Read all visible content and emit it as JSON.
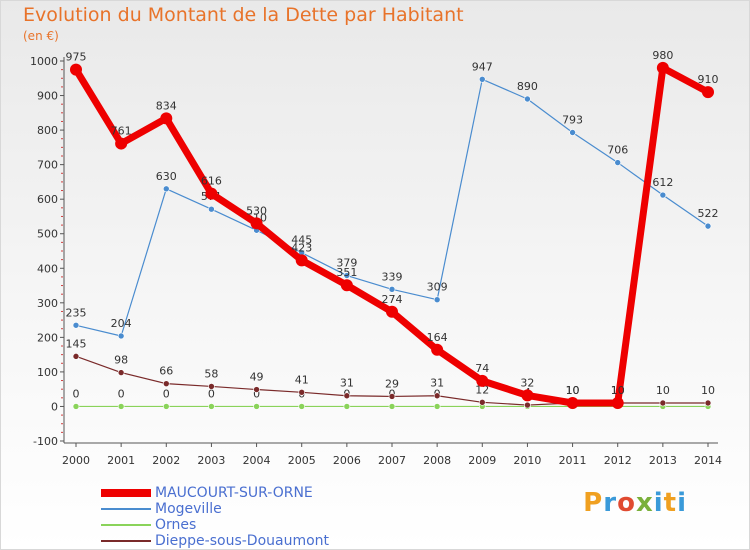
{
  "header": {
    "title": "Evolution du Montant de la Dette par Habitant",
    "unit": "(en €)"
  },
  "brand": {
    "logo_text": "Proxiti"
  },
  "chart_data": {
    "type": "line",
    "title": "Evolution du Montant de la Dette par Habitant",
    "subtitle": "(en €)",
    "xlabel": "",
    "ylabel": "",
    "x": [
      "2000",
      "2001",
      "2002",
      "2003",
      "2004",
      "2005",
      "2006",
      "2007",
      "2008",
      "2009",
      "2010",
      "2011",
      "2012",
      "2013",
      "2014"
    ],
    "ylim": [
      -100,
      1000
    ],
    "yticks": [
      "-100",
      "0",
      "100",
      "200",
      "300",
      "400",
      "500",
      "600",
      "700",
      "800",
      "900",
      "1000"
    ],
    "grid": false,
    "legend_position": "bottom-left",
    "series": [
      {
        "name": "Mogeville",
        "color": "#4a8ccf",
        "values": [
          235,
          204,
          630,
          571,
          510,
          445,
          379,
          339,
          309,
          947,
          890,
          793,
          706,
          612,
          522
        ],
        "labels": [
          "235",
          "204",
          "630",
          "571",
          "510",
          "445",
          "379",
          "339",
          "309",
          "947",
          "890",
          "793",
          "706",
          "612",
          "522"
        ]
      },
      {
        "name": "Ornes",
        "color": "#8ad35a",
        "values": [
          0,
          0,
          0,
          0,
          0,
          0,
          0,
          0,
          0,
          0,
          0,
          0,
          0,
          0,
          0
        ],
        "labels": [
          "0",
          "0",
          "0",
          "0",
          "0",
          "0",
          "0",
          "0",
          "0",
          "",
          "",
          "",
          "",
          "",
          ""
        ]
      },
      {
        "name": "Dieppe-sous-Douaumont",
        "color": "#7a2a2a",
        "values": [
          145,
          98,
          66,
          58,
          49,
          41,
          31,
          29,
          31,
          12,
          4,
          10,
          10,
          10,
          10
        ],
        "labels": [
          "145",
          "98",
          "66",
          "58",
          "49",
          "41",
          "31",
          "29",
          "31",
          "12",
          "4",
          "10",
          "10",
          "10",
          "10"
        ]
      },
      {
        "name": "MAUCOURT-SUR-ORNE",
        "color": "#ee0000",
        "values": [
          975,
          761,
          834,
          616,
          530,
          423,
          351,
          274,
          164,
          74,
          32,
          10,
          10,
          980,
          910
        ],
        "labels": [
          "975",
          "761",
          "834",
          "616",
          "530",
          "423",
          "351",
          "274",
          "164",
          "74",
          "32",
          "10",
          "10",
          "980",
          "910"
        ]
      }
    ],
    "legend": [
      {
        "name": "MAUCOURT-SUR-ORNE",
        "color": "#ee0000"
      },
      {
        "name": "Mogeville",
        "color": "#4a8ccf"
      },
      {
        "name": "Ornes",
        "color": "#8ad35a"
      },
      {
        "name": "Dieppe-sous-Douaumont",
        "color": "#7a2a2a"
      }
    ]
  }
}
